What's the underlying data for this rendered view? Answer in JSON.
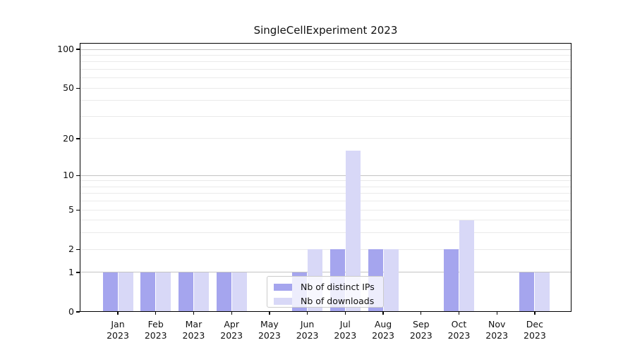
{
  "chart_data": {
    "type": "bar",
    "title": "SingleCellExperiment 2023",
    "categories": [
      "Jan",
      "Feb",
      "Mar",
      "Apr",
      "May",
      "Jun",
      "Jul",
      "Aug",
      "Sep",
      "Oct",
      "Nov",
      "Dec"
    ],
    "year_label": "2023",
    "series": [
      {
        "name": "Nb of distinct IPs",
        "color": "#a5a5ee",
        "values": [
          1,
          1,
          1,
          1,
          0,
          1,
          2,
          2,
          0,
          2,
          0,
          1
        ]
      },
      {
        "name": "Nb of downloads",
        "color": "#d8d8f7",
        "values": [
          1,
          1,
          1,
          1,
          0,
          2,
          16,
          2,
          0,
          4,
          0,
          1
        ]
      }
    ],
    "yscale": "log1p",
    "yticks": [
      0,
      1,
      2,
      5,
      10,
      20,
      50,
      100
    ],
    "ylim": [
      0,
      112
    ],
    "xlabel": "",
    "ylabel": "",
    "grid": true,
    "legend_position": "lower center",
    "colors": {
      "major_grid": "#c3c3c3",
      "minor_grid": "#eaeaea",
      "axis": "#000000",
      "text": "#111111"
    }
  }
}
